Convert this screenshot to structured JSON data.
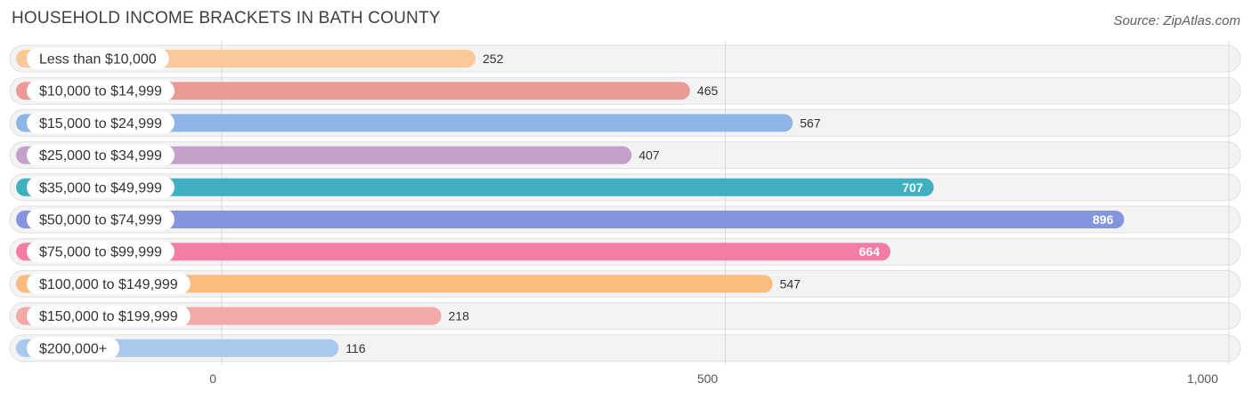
{
  "chart_data": {
    "type": "bar",
    "orientation": "horizontal",
    "title": "HOUSEHOLD INCOME BRACKETS IN BATH COUNTY",
    "source": "Source: ZipAtlas.com",
    "categories": [
      "Less than $10,000",
      "$10,000 to $14,999",
      "$15,000 to $24,999",
      "$25,000 to $34,999",
      "$35,000 to $49,999",
      "$50,000 to $74,999",
      "$75,000 to $99,999",
      "$100,000 to $149,999",
      "$150,000 to $199,999",
      "$200,000+"
    ],
    "values": [
      252,
      465,
      567,
      407,
      707,
      896,
      664,
      547,
      218,
      116
    ],
    "value_labels": [
      "252",
      "465",
      "567",
      "407",
      "707",
      "896",
      "664",
      "547",
      "218",
      "116"
    ],
    "label_inside": [
      false,
      false,
      false,
      false,
      true,
      true,
      true,
      false,
      false,
      false
    ],
    "colors": [
      "#f9c99a",
      "#ec9a96",
      "#8db5e5",
      "#c4a1ca",
      "#3fb0c0",
      "#8494de",
      "#f47ea3",
      "#fbbb7c",
      "#f2a9a8",
      "#a9c8ee"
    ],
    "xlim": [
      0,
      1000
    ],
    "ticks": [
      0,
      500,
      1000
    ],
    "tick_labels": [
      "0",
      "500",
      "1,000"
    ],
    "xlabel": "",
    "ylabel": "",
    "grid": true
  }
}
